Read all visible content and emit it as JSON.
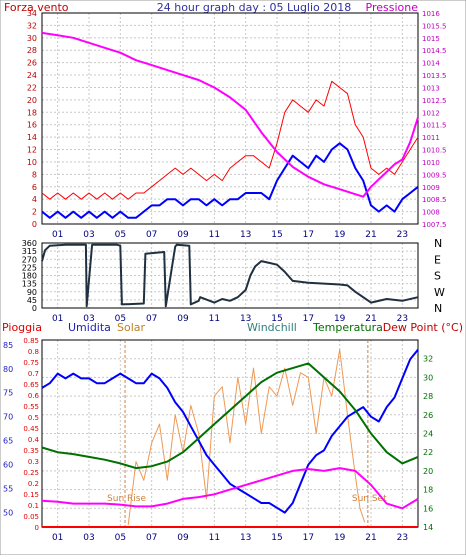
{
  "chart_data": [
    {
      "type": "line",
      "title": "24 hour graph day : 05 Luglio 2018",
      "left_axis_label": "Forza vento",
      "right_axis_label": "Pressione",
      "left_ylim": [
        0,
        34
      ],
      "right_ylim": [
        1007.5,
        1016
      ],
      "left_ticks": [
        0,
        2,
        4,
        6,
        8,
        10,
        12,
        14,
        16,
        18,
        20,
        22,
        24,
        26,
        28,
        30,
        32,
        34
      ],
      "right_ticks": [
        "1007.5",
        "1008",
        "1008.5",
        "1009",
        "1009.5",
        "1010",
        "1010.5",
        "1011",
        "1011.5",
        "1012",
        "1012.5",
        "1013",
        "1013.5",
        "1014",
        "1014.5",
        "1015",
        "1015.5",
        "1016"
      ],
      "x_ticks": [
        "01",
        "03",
        "05",
        "07",
        "09",
        "11",
        "13",
        "15",
        "17",
        "19",
        "21",
        "23"
      ],
      "xlim": [
        0,
        24
      ],
      "series": [
        {
          "axis": "left",
          "color": "#ff0000",
          "x": [
            0,
            0.5,
            1,
            1.5,
            2,
            2.5,
            3,
            3.5,
            4,
            4.5,
            5,
            5.5,
            6,
            6.5,
            7,
            7.5,
            8,
            8.5,
            9,
            9.5,
            10,
            10.5,
            11,
            11.5,
            12,
            12.5,
            13,
            13.5,
            14,
            14.5,
            15,
            15.5,
            16,
            16.5,
            17,
            17.5,
            18,
            18.5,
            19,
            19.5,
            20,
            20.5,
            21,
            21.5,
            22,
            22.5,
            23,
            23.5,
            24
          ],
          "y": [
            5,
            4,
            5,
            4,
            5,
            4,
            5,
            4,
            5,
            4,
            5,
            4,
            5,
            5,
            6,
            7,
            8,
            9,
            8,
            9,
            8,
            7,
            8,
            7,
            9,
            10,
            11,
            11,
            10,
            9,
            13,
            18,
            20,
            19,
            18,
            20,
            19,
            23,
            22,
            21,
            16,
            14,
            9,
            8,
            9,
            8,
            10,
            12,
            14
          ]
        },
        {
          "axis": "left",
          "color": "#0000ff",
          "x": [
            0,
            0.5,
            1,
            1.5,
            2,
            2.5,
            3,
            3.5,
            4,
            4.5,
            5,
            5.5,
            6,
            6.5,
            7,
            7.5,
            8,
            8.5,
            9,
            9.5,
            10,
            10.5,
            11,
            11.5,
            12,
            12.5,
            13,
            13.5,
            14,
            14.5,
            15,
            15.5,
            16,
            16.5,
            17,
            17.5,
            18,
            18.5,
            19,
            19.5,
            20,
            20.5,
            21,
            21.5,
            22,
            22.5,
            23,
            23.5,
            24
          ],
          "y": [
            2,
            1,
            2,
            1,
            2,
            1,
            2,
            1,
            2,
            1,
            2,
            1,
            1,
            2,
            3,
            3,
            4,
            4,
            3,
            4,
            4,
            3,
            4,
            3,
            4,
            4,
            5,
            5,
            5,
            4,
            7,
            9,
            11,
            10,
            9,
            11,
            10,
            12,
            13,
            12,
            9,
            7,
            3,
            2,
            3,
            2,
            4,
            5,
            6
          ]
        },
        {
          "axis": "right",
          "color": "#ff00ff",
          "x": [
            0,
            1,
            2,
            3,
            4,
            5,
            6,
            7,
            8,
            9,
            10,
            11,
            12,
            13,
            14,
            15,
            16,
            17,
            18,
            19,
            20,
            20.5,
            21,
            21.5,
            22,
            22.5,
            23,
            23.5,
            24
          ],
          "y": [
            1015.2,
            1015.1,
            1015.0,
            1014.8,
            1014.6,
            1014.4,
            1014.1,
            1013.9,
            1013.7,
            1013.5,
            1013.3,
            1013.0,
            1012.6,
            1012.1,
            1011.2,
            1010.4,
            1009.8,
            1009.4,
            1009.1,
            1008.9,
            1008.7,
            1008.6,
            1009.0,
            1009.3,
            1009.6,
            1009.9,
            1010.1,
            1010.8,
            1011.8
          ]
        }
      ],
      "grid": true,
      "legend": "none"
    },
    {
      "type": "line",
      "ylim": [
        0,
        360
      ],
      "left_ticks": [
        0,
        45,
        90,
        135,
        180,
        225,
        270,
        315,
        360
      ],
      "right_labels": [
        "N",
        "W",
        "S",
        "E",
        "N"
      ],
      "x_ticks": [
        "01",
        "03",
        "05",
        "07",
        "09",
        "11",
        "13",
        "15",
        "17",
        "19",
        "21",
        "23"
      ],
      "xlim": [
        0,
        24
      ],
      "series": [
        {
          "color": "#203040",
          "x": [
            0,
            0.2,
            0.5,
            1.5,
            2.8,
            2.85,
            3.2,
            4.8,
            5.0,
            5.1,
            6.5,
            6.6,
            7.8,
            7.9,
            8.5,
            8.6,
            9.4,
            9.5,
            10.0,
            10.1,
            11.0,
            11.5,
            12.0,
            12.5,
            13.0,
            13.3,
            13.6,
            14.0,
            14.5,
            15.0,
            15.5,
            16.0,
            17.0,
            18.0,
            19.0,
            19.5,
            20.0,
            20.5,
            21.0,
            22.0,
            23.0,
            24.0
          ],
          "y": [
            260,
            320,
            345,
            350,
            350,
            10,
            350,
            350,
            345,
            20,
            25,
            300,
            310,
            10,
            340,
            350,
            345,
            20,
            40,
            60,
            30,
            50,
            40,
            60,
            100,
            180,
            230,
            260,
            250,
            240,
            200,
            150,
            140,
            135,
            130,
            125,
            90,
            60,
            30,
            50,
            40,
            60
          ]
        }
      ],
      "grid": true,
      "legend": "none"
    },
    {
      "type": "line",
      "series_labels": [
        "Pioggia",
        "Umidita",
        "Solar",
        "Windchill",
        "Temperatura",
        "Dew Point (°C)"
      ],
      "rain_ticks": [
        "0",
        "0.05",
        "0.1",
        "0.15",
        "0.2",
        "0.25",
        "0.3",
        "0.35",
        "0.4",
        "0.45",
        "0.5",
        "0.55",
        "0.6",
        "0.65",
        "0.7",
        "0.75",
        "0.8",
        "0.85"
      ],
      "humidity_ticks": [
        50,
        55,
        60,
        65,
        70,
        75,
        80,
        85
      ],
      "temp_ticks": [
        14,
        16,
        18,
        20,
        22,
        24,
        26,
        28,
        30,
        32
      ],
      "humidity_ylim": [
        47,
        86
      ],
      "temp_ylim": [
        14,
        34
      ],
      "x_ticks": [
        "01",
        "03",
        "05",
        "07",
        "09",
        "11",
        "13",
        "15",
        "17",
        "19",
        "21",
        "23"
      ],
      "xlim": [
        0,
        24
      ],
      "annotations": [
        {
          "text": "Sun Rise",
          "x": 5.3
        },
        {
          "text": "Sun Set",
          "x": 20.8
        }
      ],
      "series": [
        {
          "name": "Umidita",
          "axis": "humidity",
          "color": "#0000ff",
          "x": [
            0,
            0.5,
            1,
            1.5,
            2,
            2.5,
            3,
            3.5,
            4,
            4.5,
            5,
            5.5,
            6,
            6.5,
            7,
            7.5,
            8,
            8.5,
            9,
            9.5,
            10,
            10.5,
            11,
            11.5,
            12,
            12.5,
            13,
            13.5,
            14,
            14.5,
            15,
            15.5,
            16,
            16.5,
            17,
            17.5,
            18,
            18.5,
            19,
            19.5,
            20,
            20.5,
            21,
            21.5,
            22,
            22.5,
            23,
            23.5,
            24
          ],
          "y": [
            76,
            77,
            79,
            78,
            79,
            78,
            78,
            77,
            77,
            78,
            79,
            78,
            77,
            77,
            79,
            78,
            76,
            73,
            71,
            68,
            65,
            62,
            60,
            58,
            56,
            55,
            54,
            53,
            52,
            52,
            51,
            50,
            52,
            56,
            60,
            62,
            63,
            66,
            68,
            70,
            71,
            72,
            70,
            69,
            72,
            74,
            78,
            82,
            84
          ]
        },
        {
          "name": "Temperatura",
          "axis": "temp",
          "color": "#007000",
          "x": [
            0,
            1,
            2,
            3,
            4,
            5,
            6,
            7,
            8,
            9,
            10,
            11,
            12,
            13,
            14,
            15,
            16,
            17,
            18,
            19,
            20,
            21,
            22,
            23,
            24
          ],
          "y": [
            22.5,
            22.0,
            21.8,
            21.5,
            21.2,
            20.8,
            20.3,
            20.5,
            21.0,
            22.0,
            23.5,
            25.0,
            26.5,
            28.0,
            29.5,
            30.5,
            31.0,
            31.5,
            30.0,
            28.5,
            26.5,
            24.0,
            22.0,
            20.8,
            21.5
          ]
        },
        {
          "name": "Dew Point (°C)",
          "axis": "temp",
          "color": "#ff00ff",
          "x": [
            0,
            1,
            2,
            3,
            4,
            5,
            6,
            7,
            8,
            9,
            10,
            11,
            12,
            13,
            14,
            15,
            16,
            17,
            18,
            19,
            20,
            21,
            22,
            23,
            24
          ],
          "y": [
            16.8,
            16.7,
            16.5,
            16.5,
            16.5,
            16.4,
            16.2,
            16.2,
            16.5,
            17.0,
            17.2,
            17.5,
            18.0,
            18.5,
            19.0,
            19.5,
            20.0,
            20.2,
            20.0,
            20.3,
            20.0,
            18.5,
            16.5,
            16.0,
            17.0
          ]
        },
        {
          "name": "Solar",
          "axis": "temp",
          "color": "#ee9955",
          "x": [
            5.5,
            6,
            6.5,
            7,
            7.5,
            8,
            8.5,
            9,
            9.5,
            10,
            10.5,
            11,
            11.5,
            12,
            12.5,
            13,
            13.5,
            14,
            14.5,
            15,
            15.5,
            16,
            16.5,
            17,
            17.5,
            18,
            18.5,
            19,
            19.5,
            20,
            20.3,
            20.6
          ],
          "y": [
            14.2,
            21.0,
            19.0,
            23.0,
            25.0,
            19.0,
            26.0,
            22.0,
            27.0,
            24.0,
            17.0,
            28.0,
            29.0,
            23.0,
            30.0,
            25.0,
            31.0,
            24.0,
            29.0,
            28.0,
            31.0,
            27.0,
            30.5,
            30.0,
            24.0,
            30.0,
            28.0,
            33.0,
            26.0,
            19.5,
            16.0,
            14.5
          ]
        },
        {
          "name": "Pioggia",
          "axis": "rain",
          "color": "#ff0000",
          "x": [
            0,
            24
          ],
          "y": [
            0,
            0
          ]
        }
      ],
      "grid": true,
      "legend": "top"
    }
  ]
}
